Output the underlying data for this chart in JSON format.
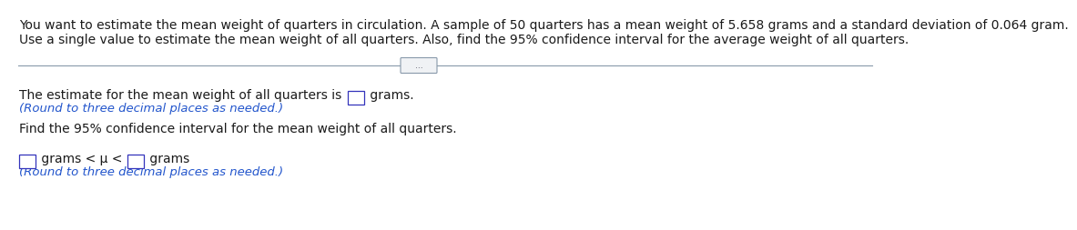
{
  "title_line1": "You want to estimate the mean weight of quarters in circulation. A sample of 50 quarters has a mean weight of 5.658 grams and a standard deviation of 0.064 gram.",
  "title_line2": "Use a single value to estimate the mean weight of all quarters. Also, find the 95% confidence interval for the average weight of all quarters.",
  "dots_text": "...",
  "q1_text_before": "The estimate for the mean weight of all quarters is ",
  "q1_text_after": " grams.",
  "q1_note": "(Round to three decimal places as needed.)",
  "q2_text": "Find the 95% confidence interval for the mean weight of all quarters.",
  "q3_text_mid": " grams < μ < ",
  "q3_text_after": " grams",
  "q3_note": "(Round to three decimal places as needed.)",
  "box_color": "#3333bb",
  "note_color": "#2255cc",
  "text_color": "#1a1a1a",
  "bg_color": "#ffffff",
  "font_size": 10.0,
  "divider_color": "#8899aa",
  "dots_button_color": "#dde0e8"
}
